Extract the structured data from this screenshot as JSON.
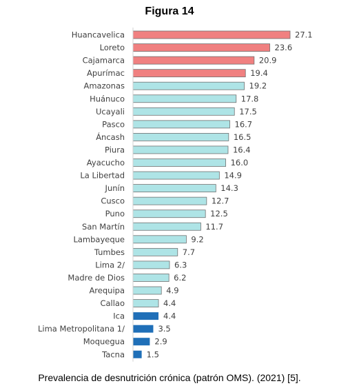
{
  "figure_title": "Figura 14",
  "caption": "Prevalencia de desnutrición crónica (patrón OMS). (2021) [5].",
  "chart_data": {
    "type": "bar",
    "orientation": "horizontal",
    "title": "",
    "xlabel": "",
    "ylabel": "",
    "grid": false,
    "categories": [
      "Huancavelica",
      "Loreto",
      "Cajamarca",
      "Apurímac",
      "Amazonas",
      "Huánuco",
      "Ucayali",
      "Pasco",
      "Áncash",
      "Piura",
      "Ayacucho",
      "La Libertad",
      "Junín",
      "Cusco",
      "Puno",
      "San Martín",
      "Lambayeque",
      "Tumbes",
      "Lima  2/",
      "Madre de Dios",
      "Arequipa",
      "Callao",
      "Ica",
      "Lima Metropolitana  1/",
      "Moquegua",
      "Tacna"
    ],
    "values": [
      27.1,
      23.6,
      20.9,
      19.4,
      19.2,
      17.8,
      17.5,
      16.7,
      16.5,
      16.4,
      16.0,
      14.9,
      14.3,
      12.7,
      12.5,
      11.7,
      9.2,
      7.7,
      6.3,
      6.2,
      4.9,
      4.4,
      4.4,
      3.5,
      2.9,
      1.5
    ],
    "value_labels": [
      "27.1",
      "23.6",
      "20.9",
      "19.4",
      "19.2",
      "17.8",
      "17.5",
      "16.7",
      "16.5",
      "16.4",
      "16.0",
      "14.9",
      "14.3",
      "12.7",
      "12.5",
      "11.7",
      "9.2",
      "7.7",
      "6.3",
      "6.2",
      "4.9",
      "4.4",
      "4.4",
      "3.5",
      "2.9",
      "1.5"
    ],
    "bar_groups": [
      "high",
      "high",
      "high",
      "high",
      "mid",
      "mid",
      "mid",
      "mid",
      "mid",
      "mid",
      "mid",
      "mid",
      "mid",
      "mid",
      "mid",
      "mid",
      "mid",
      "mid",
      "mid",
      "mid",
      "mid",
      "mid",
      "low",
      "low",
      "low",
      "low"
    ],
    "colors": {
      "high": "#f08080",
      "mid": "#aee4e6",
      "low": "#1f6fb8",
      "outline": "#707070"
    },
    "xlim": [
      0,
      27.1
    ]
  }
}
